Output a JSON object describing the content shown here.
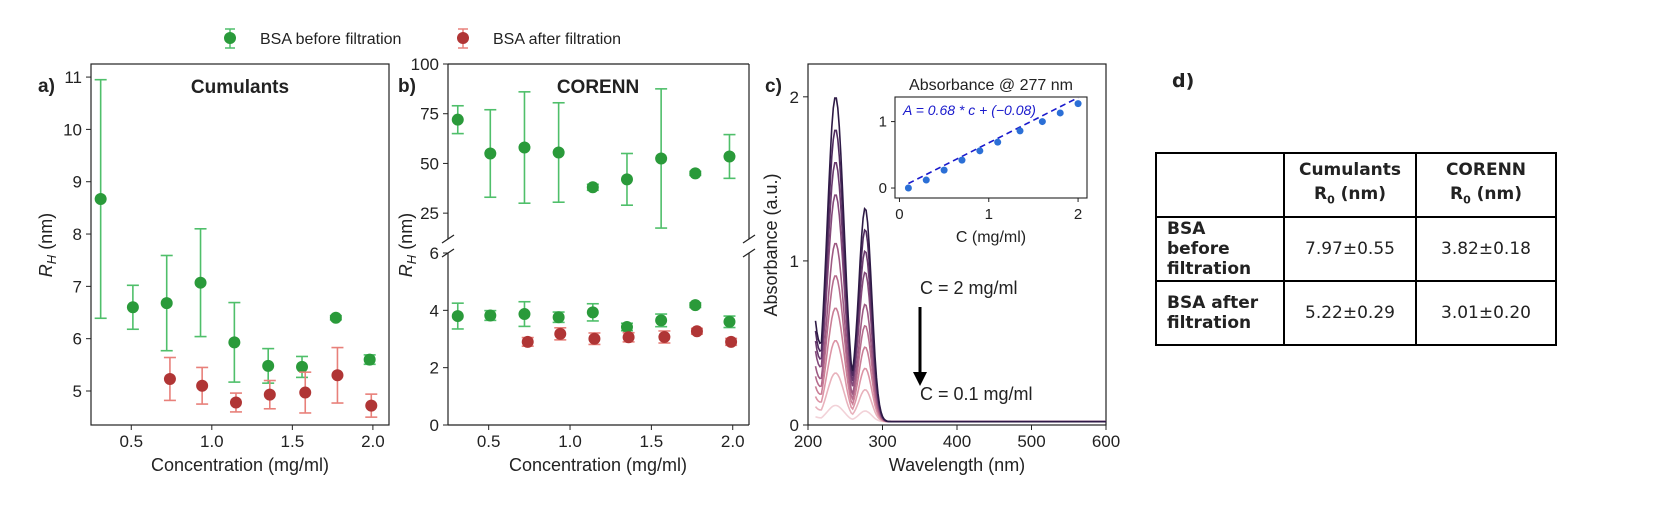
{
  "legend": {
    "before_label": "BSA before filtration",
    "after_label": "BSA after filtration"
  },
  "colors": {
    "before_point": "#2a9a3a",
    "before_err": "#4fbf6a",
    "after_point": "#b03535",
    "after_err": "#e8807a",
    "fit_line": "#1a1acc",
    "fit_point": "#2b6fd6"
  },
  "chart_data": [
    {
      "panel": "a)",
      "type": "scatter",
      "title": "Cumulants",
      "xlabel": "Concentration (mg/ml)",
      "ylabel": "R_H (nm)",
      "xlim": [
        0.25,
        2.1
      ],
      "ylim": [
        4.35,
        11.25
      ],
      "xticks": [
        "0.5",
        "1.0",
        "1.5",
        "2.0"
      ],
      "yticks": [
        "5",
        "6",
        "7",
        "8",
        "9",
        "10",
        "11"
      ],
      "series": [
        {
          "name": "BSA before filtration",
          "x": [
            0.31,
            0.51,
            0.72,
            0.93,
            1.14,
            1.35,
            1.56,
            1.77,
            1.98
          ],
          "y": [
            8.67,
            6.6,
            6.68,
            7.07,
            5.93,
            5.48,
            5.46,
            6.4,
            5.6
          ],
          "err": [
            2.28,
            0.42,
            0.91,
            1.03,
            0.76,
            0.33,
            0.2,
            0.04,
            0.09
          ]
        },
        {
          "name": "BSA after filtration",
          "x": [
            0.74,
            0.94,
            1.15,
            1.36,
            1.58,
            1.78,
            1.99
          ],
          "y": [
            5.23,
            5.1,
            4.78,
            4.93,
            4.97,
            5.3,
            4.72
          ],
          "err": [
            0.41,
            0.35,
            0.18,
            0.27,
            0.39,
            0.53,
            0.22
          ]
        }
      ]
    },
    {
      "panel": "b)",
      "type": "scatter",
      "title": "CORENN",
      "xlabel": "Concentration (mg/ml)",
      "ylabel": "R_H (nm)",
      "xlim": [
        0.25,
        2.1
      ],
      "ylim_top": [
        12,
        100
      ],
      "ylim_bottom": [
        0,
        6
      ],
      "yticks_top": [
        "25",
        "50",
        "75",
        "100"
      ],
      "yticks_bottom": [
        "0",
        "2",
        "4",
        "6"
      ],
      "xticks": [
        "0.5",
        "1.0",
        "1.5",
        "2.0"
      ],
      "series": [
        {
          "name": "BSA before filtration",
          "x": [
            0.31,
            0.51,
            0.72,
            0.93,
            1.14,
            1.35,
            1.56,
            1.77,
            1.98
          ],
          "y_top": [
            72,
            55,
            58,
            55.5,
            38,
            42,
            52.5,
            45,
            53.5
          ],
          "err_top": [
            7,
            22,
            28,
            25,
            1.5,
            13,
            35,
            1,
            11
          ],
          "y": [
            3.8,
            3.82,
            3.87,
            3.76,
            3.93,
            3.42,
            3.65,
            4.18,
            3.6
          ],
          "err": [
            0.45,
            0.17,
            0.43,
            0.18,
            0.3,
            0.13,
            0.22,
            0.08,
            0.2
          ]
        },
        {
          "name": "BSA after filtration",
          "x": [
            0.74,
            0.94,
            1.15,
            1.36,
            1.58,
            1.78,
            1.99
          ],
          "y": [
            2.9,
            3.18,
            3.01,
            3.06,
            3.07,
            3.27,
            2.9
          ],
          "err": [
            0.15,
            0.21,
            0.2,
            0.16,
            0.21,
            0.1,
            0.12
          ]
        }
      ]
    },
    {
      "panel": "c)",
      "type": "line",
      "xlabel": "Wavelength (nm)",
      "ylabel": "Absorbance (a.u.)",
      "xlim": [
        200,
        600
      ],
      "ylim": [
        0,
        2.2
      ],
      "xticks": [
        "200",
        "300",
        "400",
        "500",
        "600"
      ],
      "yticks": [
        "0",
        "1",
        "2"
      ],
      "concentrations": [
        0.1,
        0.3,
        0.5,
        0.7,
        0.9,
        1.1,
        1.4,
        1.6,
        1.8,
        2.0
      ],
      "peak_main_nm": 237,
      "peak_main_abs_max": 1.98,
      "peak_277_abs_max": 1.28,
      "annotations": {
        "top": "C = 2 mg/ml",
        "bottom": "C = 0.1 mg/ml"
      },
      "colors": [
        "#f2d2d8",
        "#e8b2bc",
        "#dc95a6",
        "#c97e96",
        "#b66c8d",
        "#9e5a83",
        "#84497a",
        "#6a3a6e",
        "#4f2b5f",
        "#2e1a46"
      ],
      "inset": {
        "type": "scatter",
        "title": "Absorbance @ 277 nm",
        "xlabel": "C (mg/ml)",
        "xlim": [
          -0.05,
          2.1
        ],
        "ylim": [
          -0.15,
          1.37
        ],
        "xticks": [
          "0",
          "1",
          "2"
        ],
        "yticks": [
          "0",
          "1"
        ],
        "equation": "A = 0.68 * c + (−0.08)",
        "x": [
          0.1,
          0.3,
          0.5,
          0.7,
          0.9,
          1.1,
          1.35,
          1.6,
          1.8,
          2.0
        ],
        "y": [
          0.0,
          0.12,
          0.27,
          0.42,
          0.56,
          0.69,
          0.86,
          1.0,
          1.13,
          1.27
        ],
        "fit": {
          "slope": 0.68,
          "intercept": -0.08
        }
      }
    }
  ],
  "panel_d": {
    "label": "d)",
    "table": {
      "header": [
        "",
        "Cumulants",
        "CORENN"
      ],
      "rows": [
        [
          "BSA before filtration",
          "7.97±0.55",
          "3.82±0.18"
        ],
        [
          "BSA after filtration",
          "5.22±0.29",
          "3.01±0.20"
        ]
      ]
    }
  }
}
